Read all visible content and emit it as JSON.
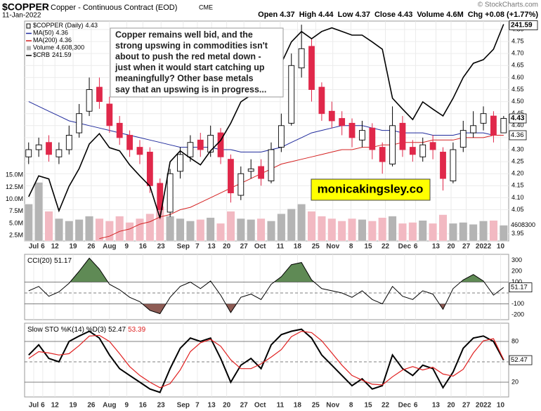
{
  "header": {
    "symbol": "$COPPER",
    "description": "Copper - Continuous Contract (EOD)",
    "exchange": "CME",
    "date": "11-Jan-2022",
    "source": "© StockCharts.com",
    "stats": [
      {
        "name": "Open",
        "value": 4.37
      },
      {
        "name": "High",
        "value": 4.44
      },
      {
        "name": "Low",
        "value": 4.37
      },
      {
        "name": "Close",
        "value": 4.43
      },
      {
        "name": "Volume",
        "value": 4600000,
        "label": "4.6M"
      },
      {
        "name": "Chg",
        "value": 0.08,
        "label": "+0.08 (+1.77%)"
      }
    ]
  },
  "chart_data": [
    {
      "type": "candlestick",
      "name": "$COPPER (Daily)",
      "up_color": "#ffffff",
      "down_color": "#e0284a",
      "grid": true,
      "open": [
        4.27,
        4.3,
        4.33,
        4.27,
        4.3,
        4.37,
        4.46,
        4.56,
        4.49,
        4.41,
        4.36,
        4.31,
        4.29,
        4.16,
        4.04,
        4.21,
        4.27,
        4.34,
        4.29,
        4.37,
        4.26,
        4.11,
        4.21,
        4.23,
        4.17,
        4.31,
        4.41,
        4.64,
        4.73,
        4.56,
        4.46,
        4.43,
        4.41,
        4.34,
        4.39,
        4.31,
        4.24,
        4.41,
        4.31,
        4.27,
        4.33,
        4.29,
        4.17,
        4.31,
        4.37,
        4.41,
        4.44,
        4.37
      ],
      "high": [
        4.33,
        4.35,
        4.36,
        4.33,
        4.4,
        4.49,
        4.6,
        4.6,
        4.52,
        4.44,
        4.38,
        4.34,
        4.31,
        4.18,
        4.22,
        4.31,
        4.36,
        4.37,
        4.4,
        4.39,
        4.28,
        4.23,
        4.26,
        4.26,
        4.33,
        4.45,
        4.7,
        4.82,
        4.76,
        4.58,
        4.5,
        4.46,
        4.43,
        4.42,
        4.41,
        4.33,
        4.48,
        4.44,
        4.34,
        4.35,
        4.36,
        4.31,
        4.33,
        4.42,
        4.46,
        4.48,
        4.46,
        4.44
      ],
      "low": [
        4.24,
        4.27,
        4.25,
        4.24,
        4.28,
        4.35,
        4.44,
        4.47,
        4.37,
        4.32,
        4.27,
        4.24,
        4.12,
        4.01,
        4.02,
        4.18,
        4.25,
        4.27,
        4.27,
        4.24,
        4.08,
        4.09,
        4.18,
        4.15,
        4.16,
        4.29,
        4.4,
        4.6,
        4.5,
        4.42,
        4.39,
        4.36,
        4.31,
        4.31,
        4.26,
        4.2,
        4.23,
        4.27,
        4.25,
        4.25,
        4.26,
        4.13,
        4.16,
        4.29,
        4.35,
        4.38,
        4.33,
        4.37
      ],
      "close": [
        4.3,
        4.32,
        4.28,
        4.3,
        4.36,
        4.45,
        4.55,
        4.5,
        4.4,
        4.35,
        4.3,
        4.28,
        4.15,
        4.05,
        4.2,
        4.28,
        4.33,
        4.3,
        4.36,
        4.27,
        4.12,
        4.2,
        4.22,
        4.18,
        4.3,
        4.4,
        4.65,
        4.72,
        4.55,
        4.45,
        4.42,
        4.4,
        4.35,
        4.38,
        4.3,
        4.25,
        4.4,
        4.3,
        4.28,
        4.32,
        4.3,
        4.18,
        4.3,
        4.38,
        4.4,
        4.45,
        4.36,
        4.43
      ],
      "ylim": [
        3.92,
        4.835
      ],
      "yticks": [
        {
          "value": 3.95,
          "label": "3.95"
        },
        {
          "value": 4.05,
          "label": "4.05"
        },
        {
          "value": 4.1,
          "label": "4.10"
        },
        {
          "value": 4.15,
          "label": "4.15"
        },
        {
          "value": 4.2,
          "label": "4.20"
        },
        {
          "value": 4.25,
          "label": "4.25"
        },
        {
          "value": 4.3,
          "label": "4.30"
        },
        {
          "value": 4.35,
          "label": "4.35"
        },
        {
          "value": 4.4,
          "label": "4.40"
        },
        {
          "value": 4.45,
          "label": "4.45"
        },
        {
          "value": 4.5,
          "label": "4.50"
        },
        {
          "value": 4.55,
          "label": "4.55"
        },
        {
          "value": 4.6,
          "label": "4.60"
        },
        {
          "value": 4.65,
          "label": "4.65"
        },
        {
          "value": 4.7,
          "label": "4.70"
        },
        {
          "value": 4.75,
          "label": "4.75"
        },
        {
          "value": 4.8,
          "label": "4.80"
        }
      ],
      "xlim": [
        -0.4,
        47.5
      ],
      "xticks": [
        {
          "value": 0.5,
          "label": "Jul"
        },
        {
          "value": 1.4,
          "label": "6"
        },
        {
          "value": 2.6,
          "label": "12"
        },
        {
          "value": 4.4,
          "label": "19"
        },
        {
          "value": 6.2,
          "label": "26"
        },
        {
          "value": 8.0,
          "label": "Aug"
        },
        {
          "value": 9.7,
          "label": "9"
        },
        {
          "value": 11.3,
          "label": "16"
        },
        {
          "value": 13.1,
          "label": "23"
        },
        {
          "value": 15.3,
          "label": "Sep"
        },
        {
          "value": 16.7,
          "label": "7"
        },
        {
          "value": 18.1,
          "label": "13"
        },
        {
          "value": 19.6,
          "label": "20"
        },
        {
          "value": 21.3,
          "label": "27"
        },
        {
          "value": 22.9,
          "label": "Oct"
        },
        {
          "value": 24.9,
          "label": "11"
        },
        {
          "value": 26.6,
          "label": "18"
        },
        {
          "value": 28.4,
          "label": "25"
        },
        {
          "value": 30.1,
          "label": "Nov"
        },
        {
          "value": 31.9,
          "label": "8"
        },
        {
          "value": 33.6,
          "label": "15"
        },
        {
          "value": 35.3,
          "label": "22"
        },
        {
          "value": 37.2,
          "label": "Dec"
        },
        {
          "value": 38.3,
          "label": "6"
        },
        {
          "value": 40.3,
          "label": "13"
        },
        {
          "value": 41.8,
          "label": "20"
        },
        {
          "value": 43.3,
          "label": "27"
        },
        {
          "value": 45.0,
          "label": "2022"
        },
        {
          "value": 46.7,
          "label": "10"
        }
      ],
      "overlays": [
        {
          "name": "MA(50)",
          "color": "#1f2a9c",
          "values": [
            4.5,
            4.48,
            4.46,
            4.44,
            4.42,
            4.41,
            4.4,
            4.39,
            4.38,
            4.37,
            4.36,
            4.35,
            4.34,
            4.33,
            4.32,
            4.31,
            4.31,
            4.31,
            4.31,
            4.3,
            4.3,
            4.29,
            4.29,
            4.29,
            4.3,
            4.31,
            4.33,
            4.35,
            4.37,
            4.38,
            4.39,
            4.4,
            4.4,
            4.4,
            4.39,
            4.38,
            4.38,
            4.37,
            4.37,
            4.37,
            4.36,
            4.36,
            4.36,
            4.37,
            4.37,
            4.37,
            4.36,
            4.36
          ]
        },
        {
          "name": "MA(200)",
          "color": "#d42020",
          "values": [
            null,
            null,
            null,
            null,
            null,
            null,
            null,
            3.93,
            3.94,
            3.96,
            3.97,
            3.99,
            4.0,
            4.02,
            4.03,
            4.05,
            4.06,
            4.08,
            4.1,
            4.12,
            4.14,
            4.16,
            4.18,
            4.2,
            4.22,
            4.24,
            4.25,
            4.26,
            4.27,
            4.28,
            4.29,
            4.3,
            4.3,
            4.31,
            4.31,
            4.32,
            4.32,
            4.33,
            4.33,
            4.33,
            4.34,
            4.34,
            4.34,
            4.35,
            4.35,
            4.35,
            4.36,
            4.36
          ]
        }
      ],
      "volume": {
        "name": "Volume",
        "up_color": "#b4b4b4",
        "down_color": "#f2b9c2",
        "last_label": "4,608,300",
        "ylim": [
          1340000,
          20000000
        ],
        "yticks": [
          {
            "value": 2500000,
            "label": "2.5M"
          },
          {
            "value": 5000000,
            "label": "5.0M"
          },
          {
            "value": 7500000,
            "label": "7.5M"
          },
          {
            "value": 10000000,
            "label": "10.0M"
          },
          {
            "value": 12500000,
            "label": "12.5M"
          },
          {
            "value": 15000000,
            "label": "15.0M"
          }
        ],
        "values": [
          9000000,
          13500000,
          7500000,
          6000000,
          5500000,
          5800000,
          6500000,
          6000000,
          5500000,
          6500000,
          5200000,
          6000000,
          7000000,
          8500000,
          6500000,
          6000000,
          5500000,
          5800000,
          6200000,
          5000000,
          7500000,
          6000000,
          5800000,
          6000000,
          5500000,
          7000000,
          8000000,
          9000000,
          7500000,
          6500000,
          6000000,
          5500000,
          6000000,
          5800000,
          5500000,
          6200000,
          6500000,
          5000000,
          5200000,
          5600000,
          5000000,
          6800000,
          5000000,
          5200000,
          4800000,
          5500000,
          5600000,
          4608300
        ]
      },
      "crb": {
        "name": "$CRB",
        "color": "#000000",
        "axis": "y2",
        "values": [
          208.5,
          212.5,
          211.9,
          205.8,
          210.5,
          213.9,
          218.6,
          220.6,
          217.9,
          217.3,
          214.6,
          212.5,
          210.5,
          204.4,
          215.2,
          217.3,
          215.9,
          214.6,
          217.3,
          219.3,
          222.6,
          226.7,
          228.0,
          231.4,
          234.8,
          234.1,
          238.2,
          240.2,
          238.8,
          240.2,
          240.9,
          240.2,
          239.5,
          239.5,
          238.2,
          236.8,
          227.4,
          225.3,
          223.3,
          226.7,
          225.3,
          224.0,
          227.4,
          231.4,
          234.1,
          234.8,
          236.8,
          241.59
        ]
      },
      "y2lim": [
        200,
        242.2
      ],
      "annotation": [
        "Copper remains well bid, and the",
        "strong upswing in commodities isn't",
        "about to push the red metal down -",
        "just when it would start catching up",
        "meaningfully? Other base metals",
        "say that an upswing is in progress..."
      ],
      "watermark": "monicakingsley.co"
    },
    {
      "type": "line",
      "title": "CCI(20)",
      "ylim": [
        -245,
        355
      ],
      "yticks": [
        -200,
        -100,
        100,
        200,
        300
      ],
      "ref_lines": [
        {
          "value": 100,
          "fill": "#5f8a55",
          "side": "above"
        },
        {
          "value": 0,
          "dashed": true
        },
        {
          "value": -100,
          "fill": "#8e5c55",
          "side": "below"
        }
      ],
      "series": [
        {
          "color": "#000000",
          "values": [
            20,
            60,
            -30,
            10,
            90,
            200,
            320,
            220,
            80,
            30,
            -40,
            -80,
            -160,
            -190,
            -40,
            60,
            100,
            40,
            110,
            -20,
            -180,
            -40,
            -10,
            -60,
            80,
            150,
            260,
            280,
            120,
            40,
            20,
            0,
            -40,
            20,
            -60,
            -100,
            60,
            -30,
            -60,
            20,
            -10,
            -150,
            40,
            120,
            170,
            110,
            -20,
            51.17
          ]
        }
      ]
    },
    {
      "type": "line",
      "title": "Slow STO %K(14) %D(3)",
      "ylim": [
        -1.7,
        106.9
      ],
      "yticks": [
        20,
        80
      ],
      "ref_lines": [
        {
          "value": 80
        },
        {
          "value": 50,
          "dashed": true
        },
        {
          "value": 20
        }
      ],
      "series": [
        {
          "color": "#000000",
          "width": 2,
          "values": [
            60,
            75,
            55,
            50,
            80,
            88,
            95,
            85,
            60,
            40,
            30,
            20,
            10,
            5,
            40,
            70,
            85,
            80,
            85,
            55,
            20,
            45,
            55,
            40,
            75,
            90,
            95,
            98,
            85,
            60,
            45,
            30,
            15,
            25,
            10,
            15,
            60,
            40,
            30,
            45,
            40,
            12,
            35,
            70,
            85,
            88,
            80,
            52.47
          ]
        },
        {
          "color": "#e02020",
          "width": 1.2,
          "values": [
            55,
            65,
            63,
            60,
            62,
            74,
            88,
            89,
            80,
            62,
            43,
            30,
            20,
            12,
            18,
            38,
            65,
            78,
            83,
            73,
            53,
            40,
            40,
            47,
            57,
            68,
            87,
            95,
            93,
            81,
            63,
            45,
            30,
            23,
            17,
            16,
            28,
            38,
            43,
            38,
            42,
            32,
            29,
            39,
            63,
            81,
            84,
            53.39
          ]
        }
      ]
    }
  ]
}
